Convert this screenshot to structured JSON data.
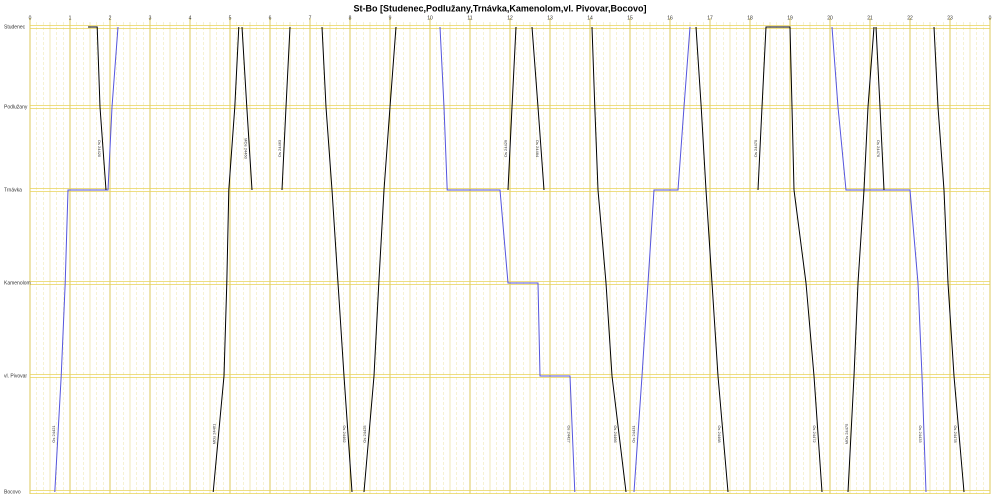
{
  "chart_data": {
    "type": "train-graph",
    "title": "St-Bo [Studenec,Podlužany,Trnávka,Kamenolom,vl. Pivovar,Bocovo]",
    "stations": [
      "Studenec",
      "Podlužany",
      "Trnávka",
      "Kamenolom",
      "vl. Pivovar",
      "Bocovo"
    ],
    "xlim": [
      0,
      24
    ],
    "xticks": [
      0,
      1,
      2,
      3,
      4,
      5,
      6,
      7,
      8,
      9,
      10,
      11,
      12,
      13,
      14,
      15,
      16,
      17,
      18,
      19,
      20,
      21,
      22,
      23,
      {
        "value": 24,
        "label": "0"
      }
    ],
    "grid": true,
    "series": [
      {
        "name": "Os 24421",
        "color": "#5555dd",
        "x": [
          0.62,
          0.78,
          0.88,
          0.95,
          1.95,
          2.05,
          2.2
        ],
        "y": [
          "Bocovo",
          "vl. Pivovar",
          "Kamenolom",
          "Trnávka",
          "Trnávka",
          "Podlužany",
          "Studenec"
        ]
      },
      {
        "name": "Os 24420",
        "color": "#000000",
        "x": [
          1.45,
          1.68,
          1.75,
          1.9
        ],
        "y": [
          "Studenec",
          "Studenec",
          "Podlužany",
          "Trnávka"
        ]
      },
      {
        "name": "MOs 24461",
        "color": "#000000",
        "x": [
          4.58,
          4.85,
          4.92,
          4.97,
          5.12,
          5.22
        ],
        "y": [
          "Bocovo",
          "vl. Pivovar",
          "Kamenolom",
          "Trnávka",
          "Podlužany",
          "Studenec"
        ]
      },
      {
        "name": "MOs 24460",
        "color": "#000000",
        "x": [
          5.3,
          5.42,
          5.55
        ],
        "y": [
          "Studenec",
          "Podlužany",
          "Trnávka"
        ]
      },
      {
        "name": "Os 24463",
        "color": "#000000",
        "x": [
          6.3,
          6.4,
          6.5
        ],
        "y": [
          "Trnávka",
          "Podlužany",
          "Studenec"
        ]
      },
      {
        "name": "Os 24462",
        "color": "#000000",
        "x": [
          7.3,
          7.4,
          7.55,
          7.7,
          7.85,
          8.05
        ],
        "y": [
          "Studenec",
          "Podlužany",
          "Trnávka",
          "Kamenolom",
          "vl. Pivovar",
          "Bocovo"
        ]
      },
      {
        "name": "Os 24425",
        "color": "#000000",
        "x": [
          8.35,
          8.6,
          8.72,
          8.85,
          9.0,
          9.15
        ],
        "y": [
          "Bocovo",
          "vl. Pivovar",
          "Kamenolom",
          "Trnávka",
          "Podlužany",
          "Studenec"
        ]
      },
      {
        "name": "Os 24427",
        "color": "#5555dd",
        "x": [
          10.25,
          10.35,
          10.43,
          11.75,
          11.95,
          12.7,
          12.75,
          13.5,
          13.62
        ],
        "y": [
          "Studenec",
          "Podlužany",
          "Trnávka",
          "Trnávka",
          "Kamenolom",
          "Kamenolom",
          "vl. Pivovar",
          "vl. Pivovar",
          "Bocovo"
        ]
      },
      {
        "name": "Os 24429",
        "color": "#000000",
        "x": [
          11.95,
          12.05,
          12.15
        ],
        "y": [
          "Trnávka",
          "Podlužany",
          "Studenec"
        ]
      },
      {
        "name": "Os 24464",
        "color": "#000000",
        "x": [
          12.55,
          12.7,
          12.85
        ],
        "y": [
          "Studenec",
          "Podlužany",
          "Trnávka"
        ]
      },
      {
        "name": "Os 24466",
        "color": "#000000",
        "x": [
          14.05,
          14.12,
          14.2,
          14.4,
          14.55,
          14.9
        ],
        "y": [
          "Studenec",
          "Podlužany",
          "Trnávka",
          "Kamenolom",
          "vl. Pivovar",
          "Bocovo"
        ]
      },
      {
        "name": "Os 24431",
        "color": "#5555dd",
        "x": [
          15.1,
          15.3,
          15.45,
          15.6,
          16.2,
          16.35,
          16.5
        ],
        "y": [
          "Bocovo",
          "vl. Pivovar",
          "Kamenolom",
          "Trnávka",
          "Trnávka",
          "Podlužany",
          "Studenec"
        ]
      },
      {
        "name": "Os 24468",
        "color": "#000000",
        "x": [
          16.65,
          16.78,
          16.9,
          17.05,
          17.2,
          17.45
        ],
        "y": [
          "Studenec",
          "Podlužany",
          "Trnávka",
          "Kamenolom",
          "vl. Pivovar",
          "Bocovo"
        ]
      },
      {
        "name": "Os 24470",
        "color": "#000000",
        "x": [
          18.2,
          18.3,
          18.4,
          19.0,
          19.05,
          19.1
        ],
        "y": [
          "Trnávka",
          "Podlužany",
          "Studenec",
          "Studenec",
          "Podlužany",
          "Trnávka"
        ]
      },
      {
        "name": "Os 24472",
        "color": "#000000",
        "x": [
          19.1,
          19.4,
          19.6,
          19.8
        ],
        "y": [
          "Trnávka",
          "Kamenolom",
          "vl. Pivovar",
          "Bocovo"
        ]
      },
      {
        "name": "Os 24433",
        "color": "#5555dd",
        "x": [
          20.05,
          20.2,
          20.4,
          22.0,
          22.2,
          22.3,
          22.4
        ],
        "y": [
          "Studenec",
          "Podlužany",
          "Trnávka",
          "Trnávka",
          "Kamenolom",
          "vl. Pivovar",
          "Bocovo"
        ]
      },
      {
        "name": "MOs 24475",
        "color": "#000000",
        "x": [
          20.45,
          20.6,
          20.7,
          20.85,
          20.95,
          21.1
        ],
        "y": [
          "Bocovo",
          "vl. Pivovar",
          "Kamenolom",
          "Trnávka",
          "Podlužany",
          "Studenec"
        ]
      },
      {
        "name": "Os 24476",
        "color": "#000000",
        "x": [
          21.15,
          21.25,
          21.35
        ],
        "y": [
          "Studenec",
          "Podlužany",
          "Trnávka"
        ]
      },
      {
        "name": "Os 24478",
        "color": "#000000",
        "x": [
          22.6,
          22.7,
          22.85,
          22.95,
          23.1,
          23.35
        ],
        "y": [
          "Studenec",
          "Podlužany",
          "Trnávka",
          "Kamenolom",
          "vl. Pivovar",
          "Bocovo"
        ]
      }
    ]
  }
}
